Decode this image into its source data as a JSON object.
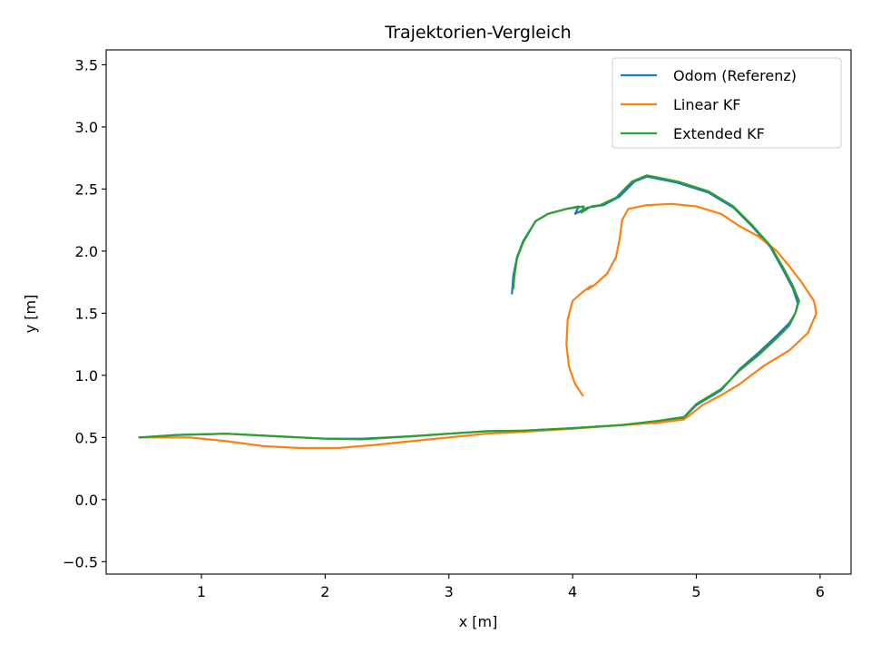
{
  "chart_data": {
    "type": "line",
    "title": "Trajektorien-Vergleich",
    "xlabel": "x [m]",
    "ylabel": "y [m]",
    "xlim": [
      0.23,
      6.25
    ],
    "ylim": [
      -0.6,
      3.62
    ],
    "xticks": [
      1,
      2,
      3,
      4,
      5,
      6
    ],
    "yticks": [
      -0.5,
      0.0,
      0.5,
      1.0,
      1.5,
      2.0,
      2.5,
      3.0,
      3.5
    ],
    "xtick_labels": [
      "1",
      "2",
      "3",
      "4",
      "5",
      "6"
    ],
    "ytick_labels": [
      "−0.5",
      "0.0",
      "0.5",
      "1.0",
      "1.5",
      "2.0",
      "2.5",
      "3.0",
      "3.5"
    ],
    "grid": false,
    "legend_position": "top-right",
    "series": [
      {
        "name": "Odom (Referenz)",
        "color": "#1f77b4",
        "points": [
          [
            0.5,
            0.5
          ],
          [
            0.8,
            0.52
          ],
          [
            1.2,
            0.53
          ],
          [
            1.6,
            0.51
          ],
          [
            2.0,
            0.49
          ],
          [
            2.3,
            0.49
          ],
          [
            2.7,
            0.51
          ],
          [
            3.0,
            0.53
          ],
          [
            3.3,
            0.55
          ],
          [
            3.6,
            0.555
          ],
          [
            4.0,
            0.575
          ],
          [
            4.4,
            0.6
          ],
          [
            4.7,
            0.63
          ],
          [
            4.9,
            0.66
          ],
          [
            5.0,
            0.76
          ],
          [
            5.2,
            0.88
          ],
          [
            5.35,
            1.05
          ],
          [
            5.5,
            1.18
          ],
          [
            5.65,
            1.32
          ],
          [
            5.75,
            1.42
          ],
          [
            5.8,
            1.5
          ],
          [
            5.82,
            1.58
          ],
          [
            5.78,
            1.7
          ],
          [
            5.7,
            1.85
          ],
          [
            5.6,
            2.03
          ],
          [
            5.45,
            2.2
          ],
          [
            5.3,
            2.35
          ],
          [
            5.1,
            2.47
          ],
          [
            4.85,
            2.55
          ],
          [
            4.6,
            2.6
          ],
          [
            4.5,
            2.56
          ],
          [
            4.38,
            2.44
          ],
          [
            4.25,
            2.37
          ],
          [
            4.12,
            2.35
          ],
          [
            4.02,
            2.3
          ],
          [
            4.05,
            2.36
          ],
          [
            3.95,
            2.34
          ],
          [
            3.8,
            2.3
          ],
          [
            3.7,
            2.24
          ],
          [
            3.6,
            2.08
          ],
          [
            3.55,
            1.95
          ],
          [
            3.52,
            1.8
          ],
          [
            3.51,
            1.66
          ]
        ]
      },
      {
        "name": "Linear KF",
        "color": "#ff7f0e",
        "points": [
          [
            0.5,
            0.5
          ],
          [
            0.9,
            0.5
          ],
          [
            1.2,
            0.47
          ],
          [
            1.5,
            0.43
          ],
          [
            1.8,
            0.415
          ],
          [
            2.1,
            0.415
          ],
          [
            2.4,
            0.44
          ],
          [
            2.7,
            0.47
          ],
          [
            3.0,
            0.5
          ],
          [
            3.3,
            0.53
          ],
          [
            3.6,
            0.545
          ],
          [
            4.0,
            0.57
          ],
          [
            4.4,
            0.6
          ],
          [
            4.7,
            0.62
          ],
          [
            4.9,
            0.645
          ],
          [
            5.05,
            0.76
          ],
          [
            5.2,
            0.84
          ],
          [
            5.35,
            0.93
          ],
          [
            5.55,
            1.08
          ],
          [
            5.75,
            1.2
          ],
          [
            5.9,
            1.34
          ],
          [
            5.97,
            1.5
          ],
          [
            5.95,
            1.6
          ],
          [
            5.85,
            1.75
          ],
          [
            5.75,
            1.88
          ],
          [
            5.65,
            2.0
          ],
          [
            5.5,
            2.12
          ],
          [
            5.35,
            2.2
          ],
          [
            5.2,
            2.3
          ],
          [
            5.0,
            2.36
          ],
          [
            4.8,
            2.38
          ],
          [
            4.6,
            2.37
          ],
          [
            4.45,
            2.34
          ],
          [
            4.4,
            2.25
          ],
          [
            4.38,
            2.1
          ],
          [
            4.35,
            1.95
          ],
          [
            4.28,
            1.82
          ],
          [
            4.18,
            1.73
          ],
          [
            4.12,
            1.69
          ],
          [
            4.15,
            1.72
          ],
          [
            4.08,
            1.67
          ],
          [
            4.0,
            1.6
          ],
          [
            3.96,
            1.45
          ],
          [
            3.95,
            1.25
          ],
          [
            3.97,
            1.07
          ],
          [
            4.02,
            0.93
          ],
          [
            4.08,
            0.84
          ]
        ]
      },
      {
        "name": "Extended KF",
        "color": "#2ca02c",
        "points": [
          [
            0.5,
            0.5
          ],
          [
            0.8,
            0.52
          ],
          [
            1.2,
            0.53
          ],
          [
            1.6,
            0.51
          ],
          [
            2.0,
            0.49
          ],
          [
            2.3,
            0.485
          ],
          [
            2.7,
            0.51
          ],
          [
            3.0,
            0.53
          ],
          [
            3.3,
            0.55
          ],
          [
            3.6,
            0.555
          ],
          [
            4.0,
            0.575
          ],
          [
            4.4,
            0.6
          ],
          [
            4.7,
            0.635
          ],
          [
            4.9,
            0.665
          ],
          [
            5.0,
            0.77
          ],
          [
            5.2,
            0.89
          ],
          [
            5.35,
            1.04
          ],
          [
            5.5,
            1.16
          ],
          [
            5.65,
            1.3
          ],
          [
            5.75,
            1.4
          ],
          [
            5.8,
            1.5
          ],
          [
            5.83,
            1.6
          ],
          [
            5.78,
            1.72
          ],
          [
            5.7,
            1.87
          ],
          [
            5.6,
            2.04
          ],
          [
            5.45,
            2.21
          ],
          [
            5.3,
            2.36
          ],
          [
            5.1,
            2.48
          ],
          [
            4.85,
            2.56
          ],
          [
            4.6,
            2.61
          ],
          [
            4.48,
            2.56
          ],
          [
            4.35,
            2.43
          ],
          [
            4.22,
            2.37
          ],
          [
            4.15,
            2.36
          ],
          [
            4.07,
            2.31
          ],
          [
            4.09,
            2.36
          ],
          [
            3.95,
            2.34
          ],
          [
            3.8,
            2.3
          ],
          [
            3.7,
            2.24
          ],
          [
            3.6,
            2.07
          ],
          [
            3.55,
            1.94
          ],
          [
            3.53,
            1.8
          ],
          [
            3.52,
            1.7
          ]
        ]
      }
    ]
  }
}
